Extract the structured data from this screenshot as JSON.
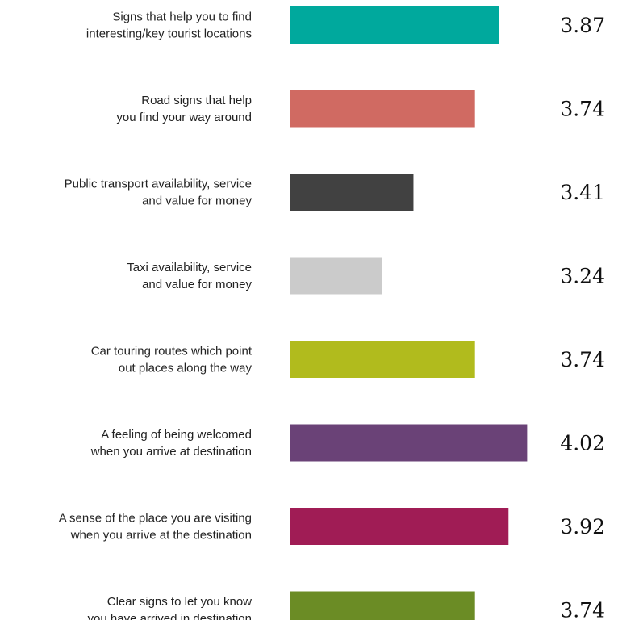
{
  "chart_data": {
    "type": "bar",
    "orientation": "horizontal",
    "categories": [
      [
        "Signs that help you to find",
        "interesting/key tourist locations"
      ],
      [
        "Road signs that help",
        "you find your way around"
      ],
      [
        "Public transport availability, service",
        "and value for money"
      ],
      [
        "Taxi availability, service",
        "and value for money"
      ],
      [
        "Car touring routes which point",
        "out places along the way"
      ],
      [
        "A feeling of being welcomed",
        "when you arrive at destination"
      ],
      [
        "A sense of the place you are visiting",
        "when you arrive at the destination"
      ],
      [
        "Clear signs to let you know",
        "you have arrived in destination"
      ]
    ],
    "values": [
      3.87,
      3.74,
      3.41,
      3.24,
      3.74,
      4.02,
      3.92,
      3.74
    ],
    "value_labels": [
      "3.87",
      "3.74",
      "3.41",
      "3.24",
      "3.74",
      "4.02",
      "3.92",
      "3.74"
    ],
    "colors": [
      "#00a99d",
      "#d06a62",
      "#414141",
      "#cbcbcb",
      "#b1bb1d",
      "#6a4277",
      "#a01c55",
      "#6b8c25"
    ],
    "xlim": [
      2.75,
      4.04
    ],
    "grid": false,
    "legend": "none"
  }
}
